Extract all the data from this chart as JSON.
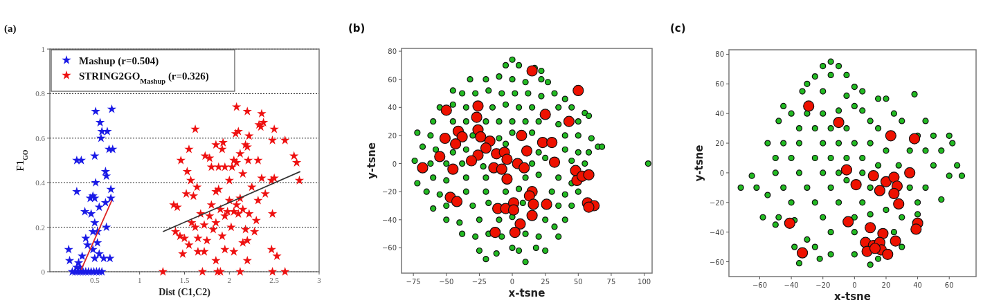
{
  "chart_data": [
    {
      "type": "scatter",
      "title": "(a)",
      "xlabel": "Dist (C1,C2)",
      "ylabel": "F1$_{GO}$",
      "xlim": [
        0,
        3
      ],
      "ylim": [
        0,
        1
      ],
      "xticks": [
        0.5,
        1,
        1.5,
        2,
        2.5,
        3
      ],
      "yticks": [
        0,
        0.2,
        0.4,
        0.6,
        0.8,
        1
      ],
      "grid": "y",
      "legend": "top left",
      "marker": "star",
      "series": [
        {
          "name": "Mashup (r=0.504)",
          "color": "#1a1ae6",
          "x": [
            0.51,
            0.69,
            0.56,
            0.58,
            0.64,
            0.57,
            0.3,
            0.35,
            0.5,
            0.66,
            0.7,
            0.62,
            0.63,
            0.51,
            0.3,
            0.68,
            0.48,
            0.5,
            0.45,
            0.68,
            0.39,
            0.46,
            0.55,
            0.62,
            0.5,
            0.48,
            0.53,
            0.63,
            0.4,
            0.42,
            0.53,
            0.48,
            0.5,
            0.55,
            0.6,
            0.67,
            0.21,
            0.22,
            0.32,
            0.36,
            0.25,
            0.28,
            0.31,
            0.34,
            0.37,
            0.4,
            0.43,
            0.46,
            0.49,
            0.52,
            0.55,
            0.58,
            0.33,
            0.3
          ],
          "values": [
            0.72,
            0.73,
            0.67,
            0.63,
            0.63,
            0.6,
            0.5,
            0.5,
            0.52,
            0.55,
            0.55,
            0.45,
            0.43,
            0.4,
            0.36,
            0.37,
            0.34,
            0.33,
            0.33,
            0.33,
            0.27,
            0.26,
            0.29,
            0.31,
            0.22,
            0.18,
            0.18,
            0.2,
            0.15,
            0.12,
            0.13,
            0.1,
            0.06,
            0.08,
            0.06,
            0.06,
            0.1,
            0.05,
            0.04,
            0.07,
            0,
            0,
            0,
            0,
            0,
            0,
            0,
            0,
            0,
            0,
            0,
            0,
            0.02,
            0.02
          ]
        },
        {
          "name": "STRING2GO$_{Mashup}$ (r=0.326)",
          "color": "#ee1111",
          "x": [
            1.26,
            1.7,
            1.87,
            1.9,
            2.12,
            2.48,
            2.62,
            1.85,
            2.2,
            1.48,
            1.65,
            1.72,
            1.95,
            2.05,
            2.15,
            2.2,
            2.47,
            2.53,
            1.4,
            1.45,
            1.5,
            1.55,
            1.58,
            1.62,
            1.65,
            1.68,
            1.72,
            1.75,
            1.78,
            1.8,
            1.82,
            1.85,
            1.88,
            1.9,
            1.92,
            1.95,
            1.98,
            2.0,
            2.02,
            2.05,
            2.08,
            2.1,
            2.12,
            2.15,
            2.18,
            2.22,
            2.28,
            2.3,
            2.32,
            2.25,
            2.36,
            2.4,
            2.47,
            2.5,
            2.48,
            2.78,
            2.75,
            2.72,
            2.62,
            2.48,
            2.5,
            2.38,
            2.35,
            2.33,
            2.36,
            2.2,
            2.08,
            2.1,
            2.07,
            2.22,
            2.2,
            2.18,
            2.12,
            2.08,
            2.05,
            2.03,
            2.21,
            2.32,
            1.93,
            1.92,
            1.85,
            1.88,
            1.78,
            1.73,
            1.62,
            1.55,
            1.46,
            1.53,
            1.57,
            1.64,
            1.6,
            1.52,
            1.38,
            1.42,
            1.85,
            1.95,
            2.0,
            2.15,
            1.8
          ],
          "values": [
            0,
            0,
            0,
            0,
            0,
            0,
            0,
            0.05,
            0.05,
            0.08,
            0.09,
            0.09,
            0.1,
            0.09,
            0.13,
            0.14,
            0.1,
            0.07,
            0.18,
            0.16,
            0.15,
            0.12,
            0.22,
            0.2,
            0.15,
            0.26,
            0.21,
            0.14,
            0.25,
            0.3,
            0.19,
            0.22,
            0.37,
            0.28,
            0.16,
            0.25,
            0.27,
            0.32,
            0.2,
            0.27,
            0.3,
            0.26,
            0.33,
            0.28,
            0.19,
            0.26,
            0.18,
            0.23,
            0.32,
            0.38,
            0.42,
            0.35,
            0.41,
            0.42,
            0.26,
            0.41,
            0.49,
            0.52,
            0.59,
            0.59,
            0.64,
            0.67,
            0.65,
            0.66,
            0.71,
            0.72,
            0.74,
            0.63,
            0.62,
            0.61,
            0.56,
            0.57,
            0.53,
            0.49,
            0.5,
            0.47,
            0.5,
            0.5,
            0.58,
            0.55,
            0.57,
            0.47,
            0.51,
            0.52,
            0.64,
            0.55,
            0.5,
            0.45,
            0.41,
            0.38,
            0.34,
            0.35,
            0.3,
            0.29,
            0.36,
            0.47,
            0.41,
            0.44,
            0.47
          ]
        },
        {
          "type": "line",
          "marker": "none",
          "color": "#dd2222",
          "x": [
            0.35,
            0.69
          ],
          "values": [
            0.01,
            0.32
          ]
        },
        {
          "type": "line",
          "marker": "none",
          "color": "#333333",
          "x": [
            1.26,
            2.79
          ],
          "values": [
            0.18,
            0.45
          ]
        }
      ]
    },
    {
      "type": "scatter",
      "title": "(b)",
      "xlabel": "x-tsne",
      "ylabel": "y-tsne",
      "xlim": [
        -84,
        106
      ],
      "ylim": [
        -78,
        82
      ],
      "xticks": [
        -75,
        -50,
        -25,
        0,
        25,
        50,
        75,
        100
      ],
      "yticks": [
        -60,
        -40,
        -20,
        0,
        20,
        40,
        60,
        80
      ],
      "marker": "circle",
      "series": [
        {
          "color": "#22bb22",
          "x": [
            -5,
            0,
            5,
            17,
            22,
            -32,
            -20,
            -10,
            0,
            10,
            22,
            27,
            -45,
            -38,
            -28,
            -18,
            -8,
            2,
            12,
            22,
            32,
            40,
            -55,
            -45,
            -35,
            -15,
            -5,
            5,
            15,
            35,
            45,
            55,
            -60,
            -45,
            -35,
            -20,
            -10,
            0,
            10,
            20,
            35,
            50,
            58,
            -72,
            -62,
            -30,
            -10,
            0,
            15,
            40,
            50,
            60,
            65,
            -68,
            -58,
            -45,
            -35,
            -5,
            20,
            40,
            50,
            58,
            68,
            -74,
            -62,
            -50,
            -38,
            -22,
            15,
            25,
            45,
            55,
            103,
            -72,
            -60,
            -50,
            -35,
            -20,
            10,
            20,
            35,
            45,
            -65,
            -55,
            -35,
            -20,
            -5,
            5,
            30,
            40,
            50,
            -60,
            -50,
            -30,
            -18,
            8,
            35,
            45,
            -50,
            -40,
            -25,
            -10,
            0,
            25,
            40,
            32,
            -38,
            -28,
            -18,
            -8,
            10,
            20,
            35,
            -25,
            -20,
            -12,
            0,
            5,
            18,
            25,
            10
          ],
          "values": [
            70,
            74,
            70,
            68,
            66,
            60,
            60,
            62,
            60,
            58,
            60,
            58,
            52,
            50,
            50,
            52,
            50,
            50,
            50,
            48,
            50,
            46,
            40,
            42,
            40,
            40,
            42,
            40,
            40,
            40,
            40,
            36,
            30,
            30,
            30,
            30,
            30,
            30,
            30,
            30,
            28,
            30,
            34,
            22,
            20,
            20,
            18,
            22,
            22,
            20,
            20,
            18,
            12,
            12,
            10,
            8,
            10,
            14,
            8,
            10,
            8,
            8,
            12,
            2,
            0,
            0,
            0,
            -2,
            0,
            4,
            2,
            0,
            0,
            -14,
            -10,
            -12,
            -10,
            -10,
            -10,
            -8,
            -10,
            -14,
            -20,
            -22,
            -20,
            -20,
            -20,
            -18,
            -20,
            -22,
            -20,
            -32,
            -30,
            -30,
            -28,
            -28,
            -30,
            -30,
            -40,
            -42,
            -40,
            -40,
            -38,
            -40,
            -40,
            -45,
            -50,
            -52,
            -50,
            -52,
            -50,
            -52,
            -52,
            -62,
            -68,
            -64,
            -60,
            -62,
            -60,
            -62,
            -70
          ]
        },
        {
          "color": "#ee1100",
          "x": [
            15,
            50,
            -50,
            -26,
            25,
            -27,
            43,
            -26,
            -41,
            -38,
            -51,
            -43,
            -24,
            -17,
            7,
            23,
            30,
            11,
            -20,
            -26,
            -31,
            -12,
            -6,
            -4,
            32,
            -55,
            -68,
            -45,
            -14,
            -8,
            4,
            9,
            -4,
            48,
            49,
            53,
            58,
            15,
            13,
            16,
            26,
            57,
            62,
            58,
            -47,
            -42,
            -11,
            -5,
            1,
            1,
            15,
            6,
            -13,
            2
          ],
          "values": [
            66,
            52,
            38,
            41,
            35,
            33,
            30,
            24,
            23,
            19,
            18,
            14,
            19,
            16,
            20,
            15,
            15,
            9,
            11,
            6,
            2,
            7,
            8,
            3,
            1,
            5,
            -3,
            -4,
            -3,
            -4,
            0,
            -3,
            -11,
            -5,
            -12,
            -9,
            -8,
            -20,
            -23,
            -29,
            -29,
            -28,
            -30,
            -31,
            -24,
            -27,
            -32,
            -32,
            -28,
            -33,
            -37,
            -43,
            -49,
            -49
          ]
        }
      ]
    },
    {
      "type": "scatter",
      "title": "(c)",
      "xlabel": "x-tsne",
      "ylabel": "y-tsne",
      "xlim": [
        -79.5,
        77
      ],
      "ylim": [
        -70,
        83
      ],
      "xticks": [
        -60,
        -40,
        -20,
        0,
        20,
        40,
        60
      ],
      "yticks": [
        -60,
        -40,
        -20,
        0,
        20,
        40,
        60,
        80
      ],
      "marker": "circle",
      "series": [
        {
          "color": "#22bb22",
          "x": [
            -15,
            -20,
            -10,
            -25,
            -15,
            -5,
            -30,
            -33,
            -20,
            -5,
            0,
            5,
            15,
            20,
            38,
            0,
            5,
            -10,
            -20,
            -30,
            -45,
            -40,
            -48,
            -35,
            -25,
            -15,
            -5,
            10,
            25,
            30,
            45,
            15,
            40,
            50,
            60,
            62,
            55,
            45,
            -55,
            -45,
            -35,
            -20,
            -10,
            0,
            10,
            20,
            35,
            -50,
            -40,
            -25,
            -15,
            -5,
            5,
            15,
            50,
            65,
            68,
            60,
            -50,
            -35,
            -20,
            -10,
            5,
            28,
            -65,
            -72,
            -62,
            -55,
            -45,
            -30,
            -15,
            -5,
            10,
            35,
            45,
            55,
            -40,
            -25,
            -10,
            5,
            20,
            40,
            -58,
            -48,
            -38,
            -20,
            0,
            10,
            30,
            40,
            -50,
            -15,
            0,
            25,
            -30,
            -38,
            -25,
            -15,
            0,
            15,
            10,
            -35,
            -22,
            30
          ],
          "values": [
            75,
            72,
            72,
            65,
            66,
            66,
            60,
            55,
            55,
            52,
            58,
            55,
            50,
            50,
            53,
            45,
            42,
            42,
            40,
            40,
            45,
            40,
            35,
            30,
            30,
            30,
            30,
            35,
            40,
            35,
            35,
            30,
            25,
            25,
            25,
            20,
            15,
            15,
            20,
            20,
            20,
            20,
            20,
            20,
            20,
            15,
            15,
            10,
            10,
            10,
            10,
            10,
            10,
            5,
            5,
            5,
            -2,
            -2,
            0,
            0,
            0,
            0,
            0,
            5,
            -2,
            -10,
            -10,
            -15,
            -10,
            -10,
            -10,
            -5,
            -10,
            -10,
            -10,
            -18,
            -20,
            -20,
            -20,
            -20,
            -25,
            -20,
            -30,
            -30,
            -32,
            -30,
            -30,
            -28,
            -30,
            -28,
            -35,
            -40,
            -40,
            -40,
            -45,
            -50,
            -50,
            -55,
            -55,
            -58,
            -62,
            -61,
            -58,
            -50
          ]
        },
        {
          "color": "#ee1100",
          "x": [
            -29,
            -10,
            23,
            38,
            -5,
            12,
            35,
            1,
            16,
            20,
            25,
            27,
            25,
            28,
            -41,
            -4,
            10,
            18,
            40,
            39,
            26,
            7,
            12,
            16,
            17,
            21,
            8,
            13,
            -33
          ],
          "values": [
            45,
            34,
            25,
            23,
            2,
            -2,
            0,
            -8,
            -12,
            -6,
            -3,
            -9,
            -14,
            -21,
            -34,
            -33,
            -37,
            -41,
            -34,
            -38,
            -46,
            -47,
            -49,
            -47,
            -52,
            -55,
            -53,
            -51,
            -54
          ]
        }
      ]
    }
  ]
}
